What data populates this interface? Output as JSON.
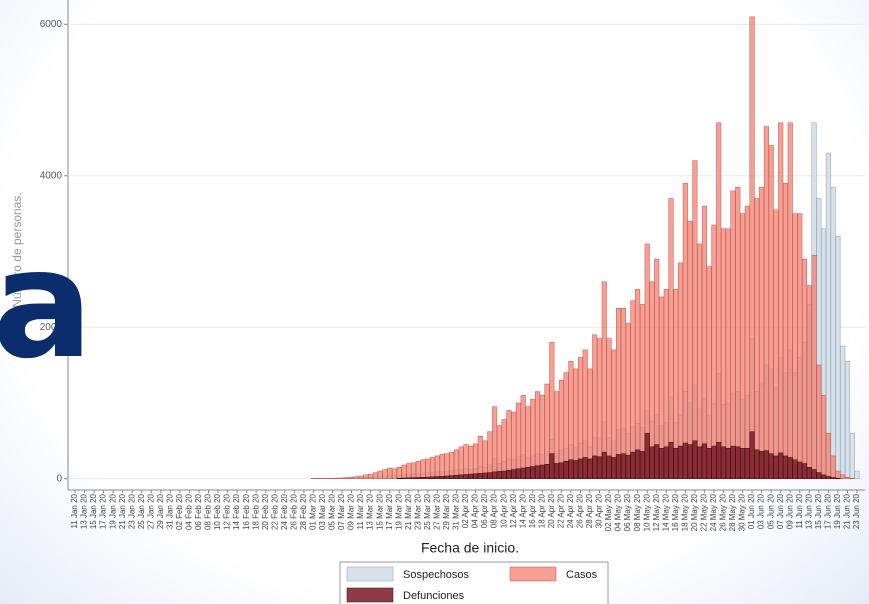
{
  "chart_data": {
    "type": "bar",
    "y_label": "Número de personas.",
    "x_label": "Fecha de inicio.",
    "overlay_text": "a",
    "ylim": [
      -150,
      6150
    ],
    "yticks": [
      0,
      2000,
      4000,
      6000
    ],
    "grid": true,
    "categories": [
      "11 Jan 20",
      null,
      "13 Jan 20",
      null,
      "15 Jan 20",
      null,
      "17 Jan 20",
      null,
      "19 Jan 20",
      null,
      "21 Jan 20",
      null,
      "23 Jan 20",
      null,
      "25 Jan 20",
      null,
      "27 Jan 20",
      null,
      "29 Jan 20",
      null,
      "31 Jan 20",
      null,
      "02 Feb 20",
      null,
      "04 Feb 20",
      null,
      "06 Feb 20",
      null,
      "08 Feb 20",
      null,
      "10 Feb 20",
      null,
      "12 Feb 20",
      null,
      "14 Feb 20",
      null,
      "16 Feb 20",
      null,
      "18 Feb 20",
      null,
      "20 Feb 20",
      null,
      "22 Feb 20",
      null,
      "24 Feb 20",
      null,
      "26 Feb 20",
      null,
      "28 Feb 20",
      null,
      "01 Mar 20",
      null,
      "03 Mar 20",
      null,
      "05 Mar 20",
      null,
      "07 Mar 20",
      null,
      "09 Mar 20",
      null,
      "11 Mar 20",
      null,
      "13 Mar 20",
      null,
      "15 Mar 20",
      null,
      "17 Mar 20",
      null,
      "19 Mar 20",
      null,
      "21 Mar 20",
      null,
      "23 Mar 20",
      null,
      "25 Mar 20",
      null,
      "27 Mar 20",
      null,
      "29 Mar 20",
      null,
      "31 Mar 20",
      null,
      "02 Apr 20",
      null,
      "04 Apr 20",
      null,
      "06 Apr 20",
      null,
      "08 Apr 20",
      null,
      "10 Apr 20",
      null,
      "12 Apr 20",
      null,
      "14 Apr 20",
      null,
      "16 Apr 20",
      null,
      "18 Apr 20",
      null,
      "20 Apr 20",
      null,
      "22 Apr 20",
      null,
      "24 Apr 20",
      null,
      "26 Apr 20",
      null,
      "28 Apr 20",
      null,
      "30 Apr 20",
      null,
      "02 May 20",
      null,
      "04 May 20",
      null,
      "06 May 20",
      null,
      "08 May 20",
      null,
      "10 May 20",
      null,
      "12 May 20",
      null,
      "14 May 20",
      null,
      "16 May 20",
      null,
      "18 May 20",
      null,
      "20 May 20",
      null,
      "22 May 20",
      null,
      "24 May 20",
      null,
      "26 May 20",
      null,
      "28 May 20",
      null,
      "30 May 20",
      null,
      "01 Jun 20",
      null,
      "03 Jun 20",
      null,
      "05 Jun 20",
      null,
      "07 Jun 20",
      null,
      "09 Jun 20",
      null,
      "11 Jun 20",
      null,
      "13 Jun 20",
      null,
      "15 Jun 20",
      null,
      "17 Jun 20",
      null,
      "19 Jun 20",
      null,
      "21 Jun 20",
      null,
      "23 Jun 20"
    ],
    "series": [
      {
        "name": "Sospechosos",
        "color": "#d6e1ea",
        "values": [
          0,
          0,
          0,
          0,
          0,
          0,
          0,
          0,
          0,
          0,
          0,
          0,
          0,
          0,
          0,
          0,
          0,
          0,
          0,
          0,
          0,
          0,
          0,
          0,
          0,
          0,
          0,
          0,
          0,
          0,
          0,
          0,
          0,
          0,
          0,
          0,
          0,
          0,
          0,
          0,
          0,
          0,
          0,
          0,
          0,
          0,
          0,
          0,
          0,
          0,
          1,
          1,
          1,
          2,
          2,
          3,
          3,
          5,
          6,
          8,
          10,
          15,
          18,
          25,
          30,
          35,
          40,
          40,
          45,
          55,
          60,
          65,
          70,
          75,
          80,
          85,
          90,
          95,
          100,
          105,
          115,
          120,
          130,
          125,
          135,
          160,
          150,
          180,
          270,
          200,
          230,
          260,
          250,
          290,
          320,
          280,
          300,
          330,
          320,
          360,
          520,
          330,
          380,
          400,
          450,
          420,
          470,
          500,
          420,
          550,
          540,
          750,
          540,
          500,
          650,
          660,
          600,
          690,
          730,
          680,
          900,
          760,
          850,
          700,
          740,
          1080,
          740,
          840,
          1150,
          1000,
          1240,
          920,
          1060,
          830,
          990,
          1390,
          980,
          1000,
          1130,
          1150,
          1050,
          1100,
          1850,
          1150,
          1250,
          1500,
          1450,
          1200,
          1600,
          1400,
          1700,
          1400,
          1600,
          1800,
          2300,
          4700,
          3700,
          3300,
          4300,
          3850,
          3200,
          1750,
          1550,
          600,
          100
        ]
      },
      {
        "name": "Casos",
        "color": "#f2806f",
        "values": [
          0,
          0,
          0,
          0,
          0,
          0,
          0,
          0,
          0,
          0,
          0,
          0,
          0,
          0,
          0,
          0,
          0,
          0,
          0,
          0,
          0,
          0,
          0,
          0,
          0,
          0,
          0,
          0,
          0,
          0,
          0,
          0,
          0,
          0,
          0,
          0,
          0,
          0,
          0,
          0,
          0,
          0,
          0,
          0,
          0,
          0,
          0,
          0,
          0,
          0,
          2,
          3,
          3,
          5,
          5,
          8,
          10,
          15,
          20,
          25,
          35,
          50,
          60,
          80,
          100,
          120,
          140,
          130,
          150,
          180,
          200,
          210,
          230,
          250,
          260,
          280,
          300,
          320,
          330,
          350,
          380,
          420,
          450,
          430,
          460,
          560,
          500,
          620,
          950,
          700,
          780,
          900,
          880,
          1000,
          1100,
          950,
          1050,
          1150,
          1100,
          1250,
          1800,
          1150,
          1300,
          1400,
          1550,
          1450,
          1600,
          1700,
          1450,
          1900,
          1850,
          2600,
          1850,
          1700,
          2250,
          2250,
          2050,
          2350,
          2500,
          2300,
          3100,
          2600,
          2900,
          2400,
          2500,
          3700,
          2500,
          2850,
          3900,
          3400,
          4200,
          3100,
          3600,
          2800,
          3350,
          4700,
          3300,
          3300,
          3800,
          3850,
          3500,
          3600,
          6100,
          3700,
          3850,
          4650,
          4400,
          3550,
          4700,
          3900,
          4700,
          3500,
          3500,
          2900,
          2550,
          2950,
          1500,
          1100,
          600,
          300,
          100,
          50,
          20,
          5,
          0
        ]
      },
      {
        "name": "Defunciones",
        "color": "#7a1a24",
        "values": [
          0,
          0,
          0,
          0,
          0,
          0,
          0,
          0,
          0,
          0,
          0,
          0,
          0,
          0,
          0,
          0,
          0,
          0,
          0,
          0,
          0,
          0,
          0,
          0,
          0,
          0,
          0,
          0,
          0,
          0,
          0,
          0,
          0,
          0,
          0,
          0,
          0,
          0,
          0,
          0,
          0,
          0,
          0,
          0,
          0,
          0,
          0,
          0,
          0,
          0,
          0,
          0,
          0,
          0,
          0,
          0,
          0,
          0,
          0,
          0,
          0,
          0,
          0,
          0,
          0,
          0,
          0,
          0,
          5,
          8,
          10,
          12,
          15,
          18,
          20,
          25,
          28,
          30,
          35,
          40,
          45,
          50,
          55,
          60,
          65,
          70,
          75,
          80,
          90,
          95,
          100,
          110,
          120,
          130,
          140,
          150,
          160,
          170,
          180,
          190,
          330,
          200,
          210,
          230,
          250,
          240,
          260,
          280,
          260,
          300,
          290,
          350,
          300,
          280,
          320,
          330,
          310,
          350,
          380,
          360,
          600,
          420,
          450,
          400,
          420,
          480,
          400,
          430,
          470,
          450,
          500,
          420,
          460,
          400,
          430,
          480,
          420,
          400,
          430,
          420,
          400,
          400,
          620,
          380,
          360,
          370,
          330,
          300,
          340,
          300,
          280,
          250,
          220,
          200,
          150,
          120,
          80,
          50,
          30,
          15,
          5,
          0,
          0,
          0,
          0
        ]
      }
    ]
  }
}
